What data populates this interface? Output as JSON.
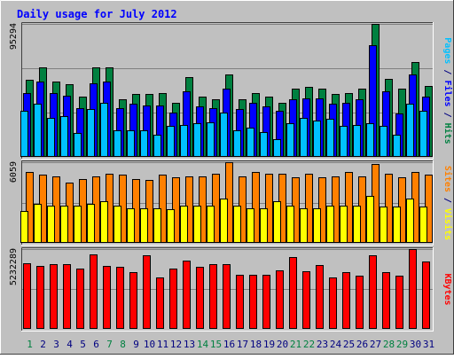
{
  "colors": {
    "hits": "#008040",
    "files": "#0000ff",
    "pages": "#00c0ff",
    "visits": "#ffff00",
    "sites": "#ff8000",
    "kbytes": "#ff0000",
    "background": "#c0c0c0",
    "title": "#0000ff",
    "weekend_day": "#008040",
    "weekday": "#000080"
  },
  "chart_data": {
    "type": "bar",
    "title": "Daily usage for July 2012",
    "categories": [
      "1",
      "2",
      "3",
      "4",
      "5",
      "6",
      "7",
      "8",
      "9",
      "10",
      "11",
      "12",
      "13",
      "14",
      "15",
      "16",
      "17",
      "18",
      "19",
      "20",
      "21",
      "22",
      "23",
      "24",
      "25",
      "26",
      "27",
      "28",
      "29",
      "30",
      "31"
    ],
    "weekend_days": [
      1,
      7,
      8,
      14,
      15,
      21,
      22,
      28,
      29
    ],
    "grid": true,
    "panels": [
      {
        "name": "top",
        "max_label": "95294",
        "ylim": [
          0,
          95294
        ],
        "ylabel": [
          {
            "text": "Pages",
            "color_key": "pages"
          },
          {
            "text": " / ",
            "color_key": "weekday"
          },
          {
            "text": "Files",
            "color_key": "files"
          },
          {
            "text": " / ",
            "color_key": "weekday"
          },
          {
            "text": "Hits",
            "color_key": "hits"
          }
        ],
        "series": [
          {
            "name": "Hits",
            "color_key": "hits",
            "values": [
              55000,
              64000,
              54000,
              52000,
              43000,
              64000,
              64000,
              41000,
              45000,
              45000,
              46000,
              39000,
              57000,
              43000,
              41000,
              59000,
              41000,
              46000,
              43000,
              39000,
              49000,
              50000,
              49000,
              45000,
              46000,
              49000,
              95294,
              56000,
              49000,
              68000,
              51000
            ]
          },
          {
            "name": "Files",
            "color_key": "files",
            "values": [
              46000,
              54000,
              46000,
              44000,
              35000,
              53000,
              54000,
              35000,
              38000,
              37000,
              37000,
              32000,
              47000,
              36000,
              35000,
              49000,
              34000,
              39000,
              36000,
              33000,
              41000,
              42000,
              42000,
              38000,
              39000,
              41000,
              80000,
              47000,
              31000,
              59000,
              43000
            ]
          },
          {
            "name": "Pages",
            "color_key": "pages",
            "values": [
              33000,
              38000,
              28000,
              29000,
              17000,
              34000,
              39000,
              19000,
              19000,
              19000,
              16000,
              22000,
              23000,
              24000,
              25000,
              32000,
              19000,
              21000,
              18000,
              13000,
              24000,
              28000,
              26000,
              27000,
              22000,
              23000,
              24000,
              22000,
              16000,
              38000,
              33000
            ]
          }
        ]
      },
      {
        "name": "middle",
        "max_label": "6059",
        "ylim": [
          0,
          6059
        ],
        "ylabel": [
          {
            "text": "Sites",
            "color_key": "sites"
          },
          {
            "text": " / ",
            "color_key": "weekday"
          },
          {
            "text": "Visits",
            "color_key": "visits"
          }
        ],
        "series": [
          {
            "name": "Sites",
            "color_key": "sites",
            "values": [
              5300,
              5100,
              5000,
              4500,
              4800,
              5000,
              5200,
              5100,
              4800,
              4700,
              5100,
              4900,
              5000,
              5000,
              5200,
              6059,
              5000,
              5300,
              5200,
              5200,
              4900,
              5200,
              4900,
              5000,
              5300,
              5000,
              5900,
              5200,
              4900,
              5300,
              5100
            ]
          },
          {
            "name": "Visits",
            "color_key": "visits",
            "values": [
              2400,
              2900,
              2800,
              2800,
              2800,
              2900,
              3100,
              2800,
              2600,
              2600,
              2600,
              2500,
              2800,
              2800,
              2800,
              3300,
              2800,
              2600,
              2600,
              3100,
              2800,
              2600,
              2600,
              2800,
              2800,
              2800,
              3500,
              2700,
              2700,
              3300,
              2700
            ]
          }
        ]
      },
      {
        "name": "bottom",
        "max_label": "5232289",
        "ylim": [
          0,
          5232289
        ],
        "ylabel": [
          {
            "text": "KBytes",
            "color_key": "kbytes"
          }
        ],
        "series": [
          {
            "name": "KBytes",
            "color_key": "kbytes",
            "values": [
              4300000,
              4150000,
              4250000,
              4250000,
              3950000,
              4900000,
              4100000,
              4050000,
              3700000,
              4850000,
              3400000,
              3950000,
              4500000,
              4050000,
              4250000,
              4250000,
              3550000,
              3550000,
              3550000,
              3850000,
              4700000,
              3800000,
              4200000,
              3400000,
              3700000,
              3500000,
              4850000,
              3700000,
              3500000,
              5232289,
              4400000
            ]
          }
        ]
      }
    ]
  }
}
